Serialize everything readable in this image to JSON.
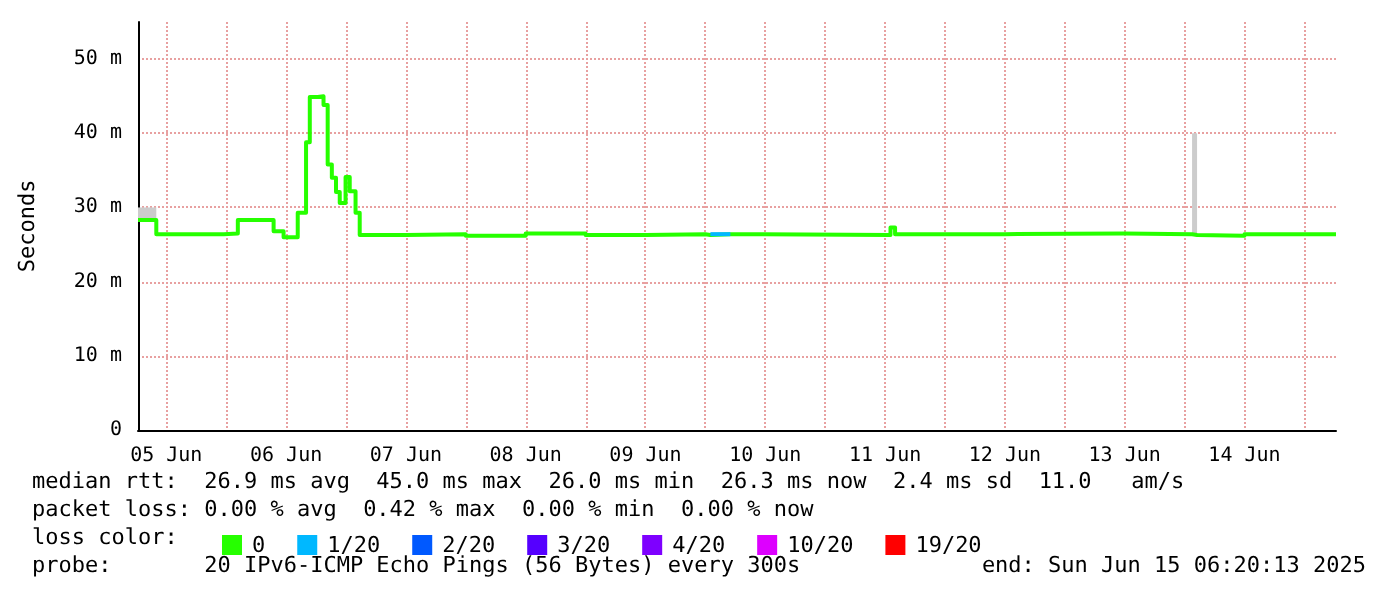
{
  "chart_data": {
    "type": "step",
    "ylabel": "Seconds",
    "x": [
      "2025-06-05T06:20",
      "2025-06-05T10:00",
      "2025-06-05T23:30",
      "2025-06-06T02:20",
      "2025-06-06T09:30",
      "2025-06-06T11:30",
      "2025-06-06T14:20",
      "2025-06-06T16:00",
      "2025-06-06T16:45",
      "2025-06-06T18:20",
      "2025-06-06T19:30",
      "2025-06-06T20:20",
      "2025-06-06T21:10",
      "2025-06-06T22:00",
      "2025-06-06T22:45",
      "2025-06-06T23:55",
      "2025-06-07T00:45",
      "2025-06-07T01:55",
      "2025-06-07T02:45",
      "2025-06-07T12:00",
      "2025-06-08T00:00",
      "2025-06-08T12:00",
      "2025-06-09T00:00",
      "2025-06-09T12:00",
      "2025-06-10T00:00",
      "2025-06-10T01:00",
      "2025-06-10T05:00",
      "2025-06-11T13:05",
      "2025-06-11T14:00",
      "2025-06-12T12:00",
      "2025-06-13T12:00",
      "2025-06-14T01:30",
      "2025-06-14T02:30",
      "2025-06-14T12:00",
      "2025-06-15T06:20"
    ],
    "series": [
      {
        "name": "0",
        "color": "#26ff00",
        "values": [
          28.3,
          26.4,
          26.5,
          28.3,
          26.8,
          26.0,
          29.3,
          38.8,
          44.9,
          45.0,
          43.8,
          35.8,
          34.0,
          32.1,
          30.6,
          34.1,
          32.2,
          29.3,
          26.3,
          26.4,
          26.2,
          26.5,
          26.3,
          26.4,
          26.3,
          26.4,
          26.3,
          27.3,
          26.4,
          26.5,
          26.4,
          26.3,
          26.2,
          26.4,
          26.3
        ],
        "lower": [
          28.3,
          null,
          null,
          null,
          null,
          null,
          null,
          null,
          null,
          null,
          null,
          null,
          null,
          null,
          null,
          null,
          null,
          null,
          null,
          null,
          null,
          null,
          null,
          null,
          null,
          null,
          null,
          null,
          null,
          null,
          null,
          26.3,
          null,
          null,
          null
        ],
        "upper": [
          30.0,
          null,
          null,
          null,
          null,
          null,
          null,
          null,
          null,
          null,
          null,
          null,
          null,
          null,
          null,
          null,
          null,
          null,
          null,
          null,
          null,
          null,
          null,
          null,
          null,
          null,
          null,
          null,
          null,
          null,
          null,
          40.0,
          null,
          null,
          null
        ]
      },
      {
        "name": "1/20",
        "type": "line",
        "color": "#00b8ff",
        "values": [
          null,
          null,
          null,
          null,
          null,
          null,
          null,
          null,
          null,
          null,
          null,
          null,
          null,
          null,
          null,
          null,
          null,
          null,
          null,
          null,
          null,
          null,
          null,
          null,
          null,
          26.4,
          26.4,
          null,
          null,
          null,
          null,
          null,
          null,
          null,
          null
        ]
      },
      {
        "name": "2/20",
        "color": "#0059ff",
        "values": [
          null,
          null,
          null,
          null,
          null,
          null,
          null,
          null,
          null,
          null,
          null,
          null,
          null,
          null,
          null,
          null,
          null,
          null,
          null,
          null,
          null,
          null,
          null,
          null,
          null,
          null,
          null,
          null,
          null,
          null,
          null,
          null,
          null,
          null,
          null
        ]
      },
      {
        "name": "3/20",
        "color": "#5500ff",
        "values": [
          null,
          null,
          null,
          null,
          null,
          null,
          null,
          null,
          null,
          null,
          null,
          null,
          null,
          null,
          null,
          null,
          null,
          null,
          null,
          null,
          null,
          null,
          null,
          null,
          null,
          null,
          null,
          null,
          null,
          null,
          null,
          null,
          null,
          null,
          null
        ]
      },
      {
        "name": "4/20",
        "color": "#7e00ff",
        "values": [
          null,
          null,
          null,
          null,
          null,
          null,
          null,
          null,
          null,
          null,
          null,
          null,
          null,
          null,
          null,
          null,
          null,
          null,
          null,
          null,
          null,
          null,
          null,
          null,
          null,
          null,
          null,
          null,
          null,
          null,
          null,
          null,
          null,
          null,
          null
        ]
      },
      {
        "name": "10/20",
        "color": "#dd00ff",
        "values": [
          null,
          null,
          null,
          null,
          null,
          null,
          null,
          null,
          null,
          null,
          null,
          null,
          null,
          null,
          null,
          null,
          null,
          null,
          null,
          null,
          null,
          null,
          null,
          null,
          null,
          null,
          null,
          null,
          null,
          null,
          null,
          null,
          null,
          null,
          null
        ]
      },
      {
        "name": "19/20",
        "color": "#ff0000",
        "values": [
          null,
          null,
          null,
          null,
          null,
          null,
          null,
          null,
          null,
          null,
          null,
          null,
          null,
          null,
          null,
          null,
          null,
          null,
          null,
          null,
          null,
          null,
          null,
          null,
          null,
          null,
          null,
          null,
          null,
          null,
          null,
          null,
          null,
          null,
          null
        ]
      }
    ],
    "xlim": [
      "2025-06-05T06:20",
      "2025-06-15T06:20"
    ],
    "xticks": [
      {
        "value": "2025-06-05T12:00",
        "label": "05 Jun"
      },
      {
        "value": "2025-06-06T00:00",
        "label": null
      },
      {
        "value": "2025-06-06T12:00",
        "label": "06 Jun"
      },
      {
        "value": "2025-06-07T00:00",
        "label": null
      },
      {
        "value": "2025-06-07T12:00",
        "label": "07 Jun"
      },
      {
        "value": "2025-06-08T00:00",
        "label": null
      },
      {
        "value": "2025-06-08T12:00",
        "label": "08 Jun"
      },
      {
        "value": "2025-06-09T00:00",
        "label": null
      },
      {
        "value": "2025-06-09T12:00",
        "label": "09 Jun"
      },
      {
        "value": "2025-06-10T00:00",
        "label": null
      },
      {
        "value": "2025-06-10T12:00",
        "label": "10 Jun"
      },
      {
        "value": "2025-06-11T00:00",
        "label": null
      },
      {
        "value": "2025-06-11T12:00",
        "label": "11 Jun"
      },
      {
        "value": "2025-06-12T00:00",
        "label": null
      },
      {
        "value": "2025-06-12T12:00",
        "label": "12 Jun"
      },
      {
        "value": "2025-06-13T00:00",
        "label": null
      },
      {
        "value": "2025-06-13T12:00",
        "label": "13 Jun"
      },
      {
        "value": "2025-06-14T00:00",
        "label": null
      },
      {
        "value": "2025-06-14T12:00",
        "label": "14 Jun"
      },
      {
        "value": "2025-06-15T00:00",
        "label": null
      }
    ],
    "ylim": [
      0,
      55
    ],
    "yticks": [
      {
        "value": 0,
        "label": "0"
      },
      {
        "value": 10,
        "label": "10 m"
      },
      {
        "value": 20,
        "label": "20 m"
      },
      {
        "value": 30,
        "label": "30 m"
      },
      {
        "value": 40,
        "label": "40 m"
      },
      {
        "value": 50,
        "label": "50 m"
      }
    ],
    "grid": true,
    "legend": "bottom",
    "marker": "none",
    "annotations": [
      "median rtt:  26.9 ms avg  45.0 ms max  26.0 ms min  26.3 ms now  2.4 ms sd  11.0   am/s",
      "packet loss: 0.00 % avg  0.42 % max  0.00 % min  0.00 % now",
      "loss color:",
      "probe:       20 IPv6-ICMP Echo Pings (56 Bytes) every 300s",
      "end: Sun Jun 15 06:20:13 2025"
    ]
  }
}
